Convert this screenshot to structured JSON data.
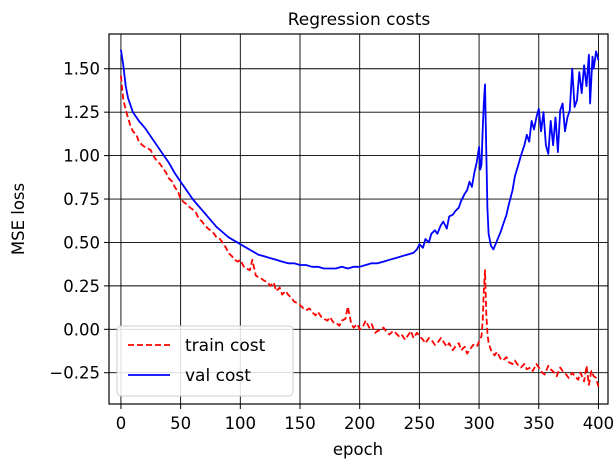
{
  "chart_data": {
    "type": "line",
    "title": "Regression costs",
    "xlabel": "epoch",
    "ylabel": "MSE loss",
    "xlim": [
      -10,
      408
    ],
    "ylim": [
      -0.43,
      1.7
    ],
    "xticks": [
      0,
      50,
      100,
      150,
      200,
      250,
      300,
      350,
      400
    ],
    "yticks": [
      -0.25,
      0.0,
      0.25,
      0.5,
      0.75,
      1.0,
      1.25,
      1.5
    ],
    "ytick_labels": [
      "−0.25",
      "0.00",
      "0.25",
      "0.50",
      "0.75",
      "1.00",
      "1.25",
      "1.50"
    ],
    "grid": true,
    "legend_position": "lower-left",
    "series": [
      {
        "name": "train cost",
        "color": "#ff0000",
        "linestyle": "dashed",
        "points": [
          [
            0,
            1.46
          ],
          [
            2,
            1.32
          ],
          [
            5,
            1.24
          ],
          [
            8,
            1.17
          ],
          [
            10,
            1.14
          ],
          [
            13,
            1.12
          ],
          [
            15,
            1.08
          ],
          [
            18,
            1.06
          ],
          [
            20,
            1.05
          ],
          [
            23,
            1.04
          ],
          [
            25,
            1.03
          ],
          [
            28,
            0.99
          ],
          [
            30,
            0.97
          ],
          [
            33,
            0.95
          ],
          [
            35,
            0.93
          ],
          [
            38,
            0.9
          ],
          [
            40,
            0.87
          ],
          [
            43,
            0.85
          ],
          [
            45,
            0.82
          ],
          [
            48,
            0.79
          ],
          [
            50,
            0.75
          ],
          [
            53,
            0.73
          ],
          [
            55,
            0.72
          ],
          [
            58,
            0.7
          ],
          [
            60,
            0.69
          ],
          [
            63,
            0.67
          ],
          [
            65,
            0.64
          ],
          [
            68,
            0.62
          ],
          [
            70,
            0.6
          ],
          [
            73,
            0.58
          ],
          [
            75,
            0.57
          ],
          [
            78,
            0.55
          ],
          [
            80,
            0.53
          ],
          [
            83,
            0.52
          ],
          [
            85,
            0.5
          ],
          [
            88,
            0.47
          ],
          [
            90,
            0.44
          ],
          [
            93,
            0.42
          ],
          [
            95,
            0.4
          ],
          [
            98,
            0.39
          ],
          [
            100,
            0.4
          ],
          [
            103,
            0.36
          ],
          [
            105,
            0.35
          ],
          [
            108,
            0.34
          ],
          [
            110,
            0.4
          ],
          [
            113,
            0.31
          ],
          [
            115,
            0.3
          ],
          [
            118,
            0.29
          ],
          [
            120,
            0.28
          ],
          [
            123,
            0.27
          ],
          [
            125,
            0.25
          ],
          [
            128,
            0.27
          ],
          [
            130,
            0.22
          ],
          [
            133,
            0.24
          ],
          [
            135,
            0.2
          ],
          [
            138,
            0.22
          ],
          [
            140,
            0.2
          ],
          [
            143,
            0.18
          ],
          [
            145,
            0.16
          ],
          [
            148,
            0.15
          ],
          [
            150,
            0.14
          ],
          [
            153,
            0.12
          ],
          [
            155,
            0.11
          ],
          [
            158,
            0.12
          ],
          [
            160,
            0.1
          ],
          [
            163,
            0.08
          ],
          [
            165,
            0.1
          ],
          [
            168,
            0.07
          ],
          [
            170,
            0.06
          ],
          [
            173,
            0.05
          ],
          [
            175,
            0.07
          ],
          [
            178,
            0.04
          ],
          [
            180,
            0.04
          ],
          [
            183,
            0.02
          ],
          [
            185,
            0.05
          ],
          [
            188,
            0.06
          ],
          [
            190,
            0.13
          ],
          [
            193,
            0.03
          ],
          [
            195,
            0.01
          ],
          [
            198,
            0.03
          ],
          [
            200,
            0.0
          ],
          [
            203,
            0.02
          ],
          [
            205,
            0.05
          ],
          [
            208,
            0.01
          ],
          [
            210,
            0.03
          ],
          [
            213,
            -0.02
          ],
          [
            215,
            -0.01
          ],
          [
            218,
            0.0
          ],
          [
            220,
            0.01
          ],
          [
            223,
            -0.02
          ],
          [
            225,
            -0.03
          ],
          [
            228,
            -0.01
          ],
          [
            230,
            -0.02
          ],
          [
            233,
            -0.04
          ],
          [
            235,
            -0.03
          ],
          [
            238,
            -0.06
          ],
          [
            240,
            -0.04
          ],
          [
            243,
            -0.01
          ],
          [
            245,
            -0.05
          ],
          [
            248,
            -0.02
          ],
          [
            250,
            -0.04
          ],
          [
            253,
            -0.06
          ],
          [
            255,
            -0.08
          ],
          [
            258,
            -0.05
          ],
          [
            260,
            -0.06
          ],
          [
            263,
            -0.09
          ],
          [
            265,
            -0.08
          ],
          [
            268,
            -0.05
          ],
          [
            270,
            -0.07
          ],
          [
            273,
            -0.1
          ],
          [
            275,
            -0.08
          ],
          [
            278,
            -0.12
          ],
          [
            280,
            -0.1
          ],
          [
            283,
            -0.08
          ],
          [
            285,
            -0.12
          ],
          [
            288,
            -0.1
          ],
          [
            290,
            -0.14
          ],
          [
            293,
            -0.11
          ],
          [
            295,
            -0.09
          ],
          [
            298,
            -0.1
          ],
          [
            300,
            -0.07
          ],
          [
            302,
            -0.04
          ],
          [
            303,
            0.05
          ],
          [
            304,
            0.22
          ],
          [
            305,
            0.34
          ],
          [
            306,
            0.1
          ],
          [
            307,
            -0.02
          ],
          [
            308,
            -0.08
          ],
          [
            310,
            -0.12
          ],
          [
            313,
            -0.15
          ],
          [
            315,
            -0.13
          ],
          [
            318,
            -0.17
          ],
          [
            320,
            -0.18
          ],
          [
            323,
            -0.16
          ],
          [
            325,
            -0.19
          ],
          [
            328,
            -0.2
          ],
          [
            330,
            -0.18
          ],
          [
            333,
            -0.21
          ],
          [
            335,
            -0.22
          ],
          [
            338,
            -0.2
          ],
          [
            340,
            -0.23
          ],
          [
            343,
            -0.22
          ],
          [
            345,
            -0.24
          ],
          [
            348,
            -0.2
          ],
          [
            350,
            -0.22
          ],
          [
            353,
            -0.25
          ],
          [
            355,
            -0.26
          ],
          [
            358,
            -0.21
          ],
          [
            360,
            -0.23
          ],
          [
            363,
            -0.25
          ],
          [
            365,
            -0.27
          ],
          [
            368,
            -0.22
          ],
          [
            370,
            -0.24
          ],
          [
            373,
            -0.26
          ],
          [
            375,
            -0.28
          ],
          [
            378,
            -0.25
          ],
          [
            380,
            -0.27
          ],
          [
            383,
            -0.29
          ],
          [
            385,
            -0.25
          ],
          [
            388,
            -0.3
          ],
          [
            390,
            -0.21
          ],
          [
            392,
            -0.32
          ],
          [
            394,
            -0.24
          ],
          [
            396,
            -0.27
          ],
          [
            398,
            -0.28
          ],
          [
            400,
            -0.33
          ]
        ]
      },
      {
        "name": "val cost",
        "color": "#0000ff",
        "linestyle": "solid",
        "points": [
          [
            0,
            1.61
          ],
          [
            2,
            1.52
          ],
          [
            4,
            1.4
          ],
          [
            6,
            1.33
          ],
          [
            8,
            1.29
          ],
          [
            10,
            1.25
          ],
          [
            13,
            1.22
          ],
          [
            15,
            1.2
          ],
          [
            20,
            1.16
          ],
          [
            25,
            1.11
          ],
          [
            30,
            1.06
          ],
          [
            35,
            1.01
          ],
          [
            40,
            0.96
          ],
          [
            45,
            0.9
          ],
          [
            50,
            0.85
          ],
          [
            55,
            0.8
          ],
          [
            60,
            0.75
          ],
          [
            65,
            0.71
          ],
          [
            70,
            0.67
          ],
          [
            75,
            0.63
          ],
          [
            80,
            0.59
          ],
          [
            85,
            0.56
          ],
          [
            90,
            0.53
          ],
          [
            95,
            0.51
          ],
          [
            100,
            0.49
          ],
          [
            105,
            0.47
          ],
          [
            110,
            0.45
          ],
          [
            115,
            0.43
          ],
          [
            120,
            0.42
          ],
          [
            125,
            0.41
          ],
          [
            130,
            0.4
          ],
          [
            135,
            0.39
          ],
          [
            140,
            0.38
          ],
          [
            145,
            0.38
          ],
          [
            150,
            0.37
          ],
          [
            155,
            0.37
          ],
          [
            160,
            0.36
          ],
          [
            165,
            0.36
          ],
          [
            170,
            0.35
          ],
          [
            175,
            0.35
          ],
          [
            180,
            0.35
          ],
          [
            185,
            0.36
          ],
          [
            190,
            0.35
          ],
          [
            195,
            0.36
          ],
          [
            200,
            0.36
          ],
          [
            205,
            0.37
          ],
          [
            210,
            0.38
          ],
          [
            215,
            0.38
          ],
          [
            220,
            0.39
          ],
          [
            225,
            0.4
          ],
          [
            230,
            0.41
          ],
          [
            235,
            0.42
          ],
          [
            240,
            0.43
          ],
          [
            245,
            0.44
          ],
          [
            248,
            0.46
          ],
          [
            250,
            0.49
          ],
          [
            253,
            0.47
          ],
          [
            255,
            0.52
          ],
          [
            258,
            0.5
          ],
          [
            260,
            0.55
          ],
          [
            263,
            0.57
          ],
          [
            265,
            0.55
          ],
          [
            268,
            0.6
          ],
          [
            270,
            0.62
          ],
          [
            273,
            0.58
          ],
          [
            275,
            0.65
          ],
          [
            278,
            0.66
          ],
          [
            280,
            0.68
          ],
          [
            283,
            0.7
          ],
          [
            285,
            0.74
          ],
          [
            288,
            0.78
          ],
          [
            290,
            0.8
          ],
          [
            292,
            0.85
          ],
          [
            294,
            0.82
          ],
          [
            296,
            0.9
          ],
          [
            298,
            0.96
          ],
          [
            300,
            1.05
          ],
          [
            301,
            0.92
          ],
          [
            302,
            0.95
          ],
          [
            303,
            1.15
          ],
          [
            304,
            1.3
          ],
          [
            305,
            1.41
          ],
          [
            306,
            1.05
          ],
          [
            307,
            0.7
          ],
          [
            308,
            0.55
          ],
          [
            310,
            0.48
          ],
          [
            312,
            0.46
          ],
          [
            315,
            0.51
          ],
          [
            318,
            0.56
          ],
          [
            320,
            0.6
          ],
          [
            323,
            0.66
          ],
          [
            325,
            0.72
          ],
          [
            328,
            0.8
          ],
          [
            330,
            0.88
          ],
          [
            333,
            0.95
          ],
          [
            335,
            1.0
          ],
          [
            338,
            1.06
          ],
          [
            340,
            1.12
          ],
          [
            342,
            1.08
          ],
          [
            344,
            1.2
          ],
          [
            346,
            1.15
          ],
          [
            348,
            1.22
          ],
          [
            350,
            1.27
          ],
          [
            352,
            1.14
          ],
          [
            354,
            1.25
          ],
          [
            356,
            1.06
          ],
          [
            358,
            1.01
          ],
          [
            360,
            1.2
          ],
          [
            362,
            1.06
          ],
          [
            364,
            1.22
          ],
          [
            366,
            1.02
          ],
          [
            368,
            1.26
          ],
          [
            370,
            1.3
          ],
          [
            372,
            1.14
          ],
          [
            374,
            1.22
          ],
          [
            376,
            1.26
          ],
          [
            378,
            1.5
          ],
          [
            380,
            1.28
          ],
          [
            382,
            1.32
          ],
          [
            384,
            1.48
          ],
          [
            386,
            1.36
          ],
          [
            388,
            1.52
          ],
          [
            390,
            1.4
          ],
          [
            392,
            1.58
          ],
          [
            393,
            1.3
          ],
          [
            395,
            1.57
          ],
          [
            396,
            1.5
          ],
          [
            398,
            1.6
          ],
          [
            400,
            1.55
          ]
        ]
      }
    ]
  }
}
